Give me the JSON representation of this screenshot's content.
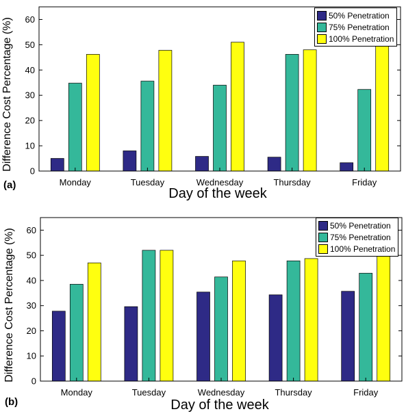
{
  "chart_data": [
    {
      "type": "bar",
      "panel_label": "(a)",
      "categories": [
        "Monday",
        "Tuesday",
        "Wednesday",
        "Thursday",
        "Friday"
      ],
      "series": [
        {
          "name": "50% Penetration",
          "color": "#2e2a86",
          "values": [
            5.0,
            8.0,
            5.8,
            5.5,
            3.3
          ]
        },
        {
          "name": "75% Penetration",
          "color": "#34b89a",
          "values": [
            34.8,
            35.6,
            34.0,
            46.2,
            32.3
          ]
        },
        {
          "name": "100% Penetration",
          "color": "#ffff0f",
          "values": [
            46.2,
            47.8,
            51.0,
            48.0,
            49.9
          ]
        }
      ],
      "xlabel": "Day of the week",
      "ylabel": "Difference Cost Percentage (%)",
      "ylim": [
        0,
        65
      ],
      "yticks": [
        0,
        10,
        20,
        30,
        40,
        50,
        60
      ],
      "grid": false,
      "legend_position": "top-right"
    },
    {
      "type": "bar",
      "panel_label": "(b)",
      "categories": [
        "Monday",
        "Tuesday",
        "Wednesday",
        "Thursday",
        "Friday"
      ],
      "series": [
        {
          "name": "50% Penetration",
          "color": "#2e2a86",
          "values": [
            27.8,
            29.6,
            35.4,
            34.3,
            35.7
          ]
        },
        {
          "name": "75% Penetration",
          "color": "#34b89a",
          "values": [
            38.5,
            52.0,
            41.4,
            47.8,
            42.9
          ]
        },
        {
          "name": "100% Penetration",
          "color": "#ffff0f",
          "values": [
            47.0,
            52.0,
            47.8,
            48.7,
            49.8
          ]
        }
      ],
      "xlabel": "Day of the week",
      "ylabel": "Difference Cost Percentage (%)",
      "ylim": [
        0,
        65
      ],
      "yticks": [
        0,
        10,
        20,
        30,
        40,
        50,
        60
      ],
      "grid": false,
      "legend_position": "top-right"
    }
  ]
}
